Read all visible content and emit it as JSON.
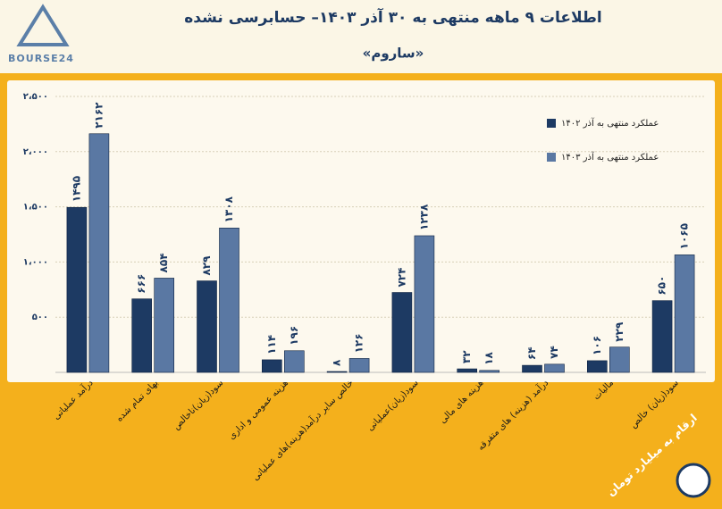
{
  "chart_data": {
    "type": "bar",
    "title": "اطلاعات ۹ ماهه منتهی به ۳۰ آذر ۱۴۰۳– حسابرسی نشده",
    "subtitle": "«ساروم»",
    "logo": "BOURSE24",
    "note": "ارقام به میلیارد تومان",
    "categories": [
      "درآمد عملیاتی",
      "بهای تمام شده",
      "سود(زیان)ناخالص",
      "هزینه عمومی و اداری",
      "خالص سایر درآمد(هزینه)های عملیاتی",
      "سود(زیان)عملیاتی",
      "هزینه های مالی",
      "درآمد (هزینه) های متفرقه",
      "مالیات",
      "سود(زیان) خالص"
    ],
    "series": [
      {
        "name": "عملکرد منتهی به آذر ۱۴۰۲",
        "color": "#1d3a63",
        "values": [
          1495,
          666,
          829,
          114,
          8,
          724,
          32,
          64,
          106,
          650
        ],
        "value_labels": [
          "۱۴۹۵",
          "۶۶۶",
          "۸۲۹",
          "۱۱۴",
          "۸",
          "۷۲۴",
          "۳۲",
          "۶۴",
          "۱۰۶",
          "۶۵۰"
        ]
      },
      {
        "name": "عملکرد منتهی به آذر ۱۴۰۳",
        "color": "#5a78a3",
        "values": [
          2162,
          854,
          1308,
          196,
          126,
          1238,
          18,
          74,
          229,
          1065
        ],
        "value_labels": [
          "۲۱۶۲",
          "۸۵۴",
          "۱۳۰۸",
          "۱۹۶",
          "۱۲۶",
          "۱۲۳۸",
          "۱۸",
          "۷۴",
          "۲۲۹",
          "۱۰۶۵"
        ]
      }
    ],
    "ylim": [
      0,
      2500
    ],
    "yticks": [
      {
        "value": 500,
        "label": "۵۰۰"
      },
      {
        "value": 1000,
        "label": "۱،۰۰۰"
      },
      {
        "value": 1500,
        "label": "۱،۵۰۰"
      },
      {
        "value": 2000,
        "label": "۲،۰۰۰"
      },
      {
        "value": 2500,
        "label": "۲،۵۰۰"
      }
    ],
    "grid": true
  }
}
